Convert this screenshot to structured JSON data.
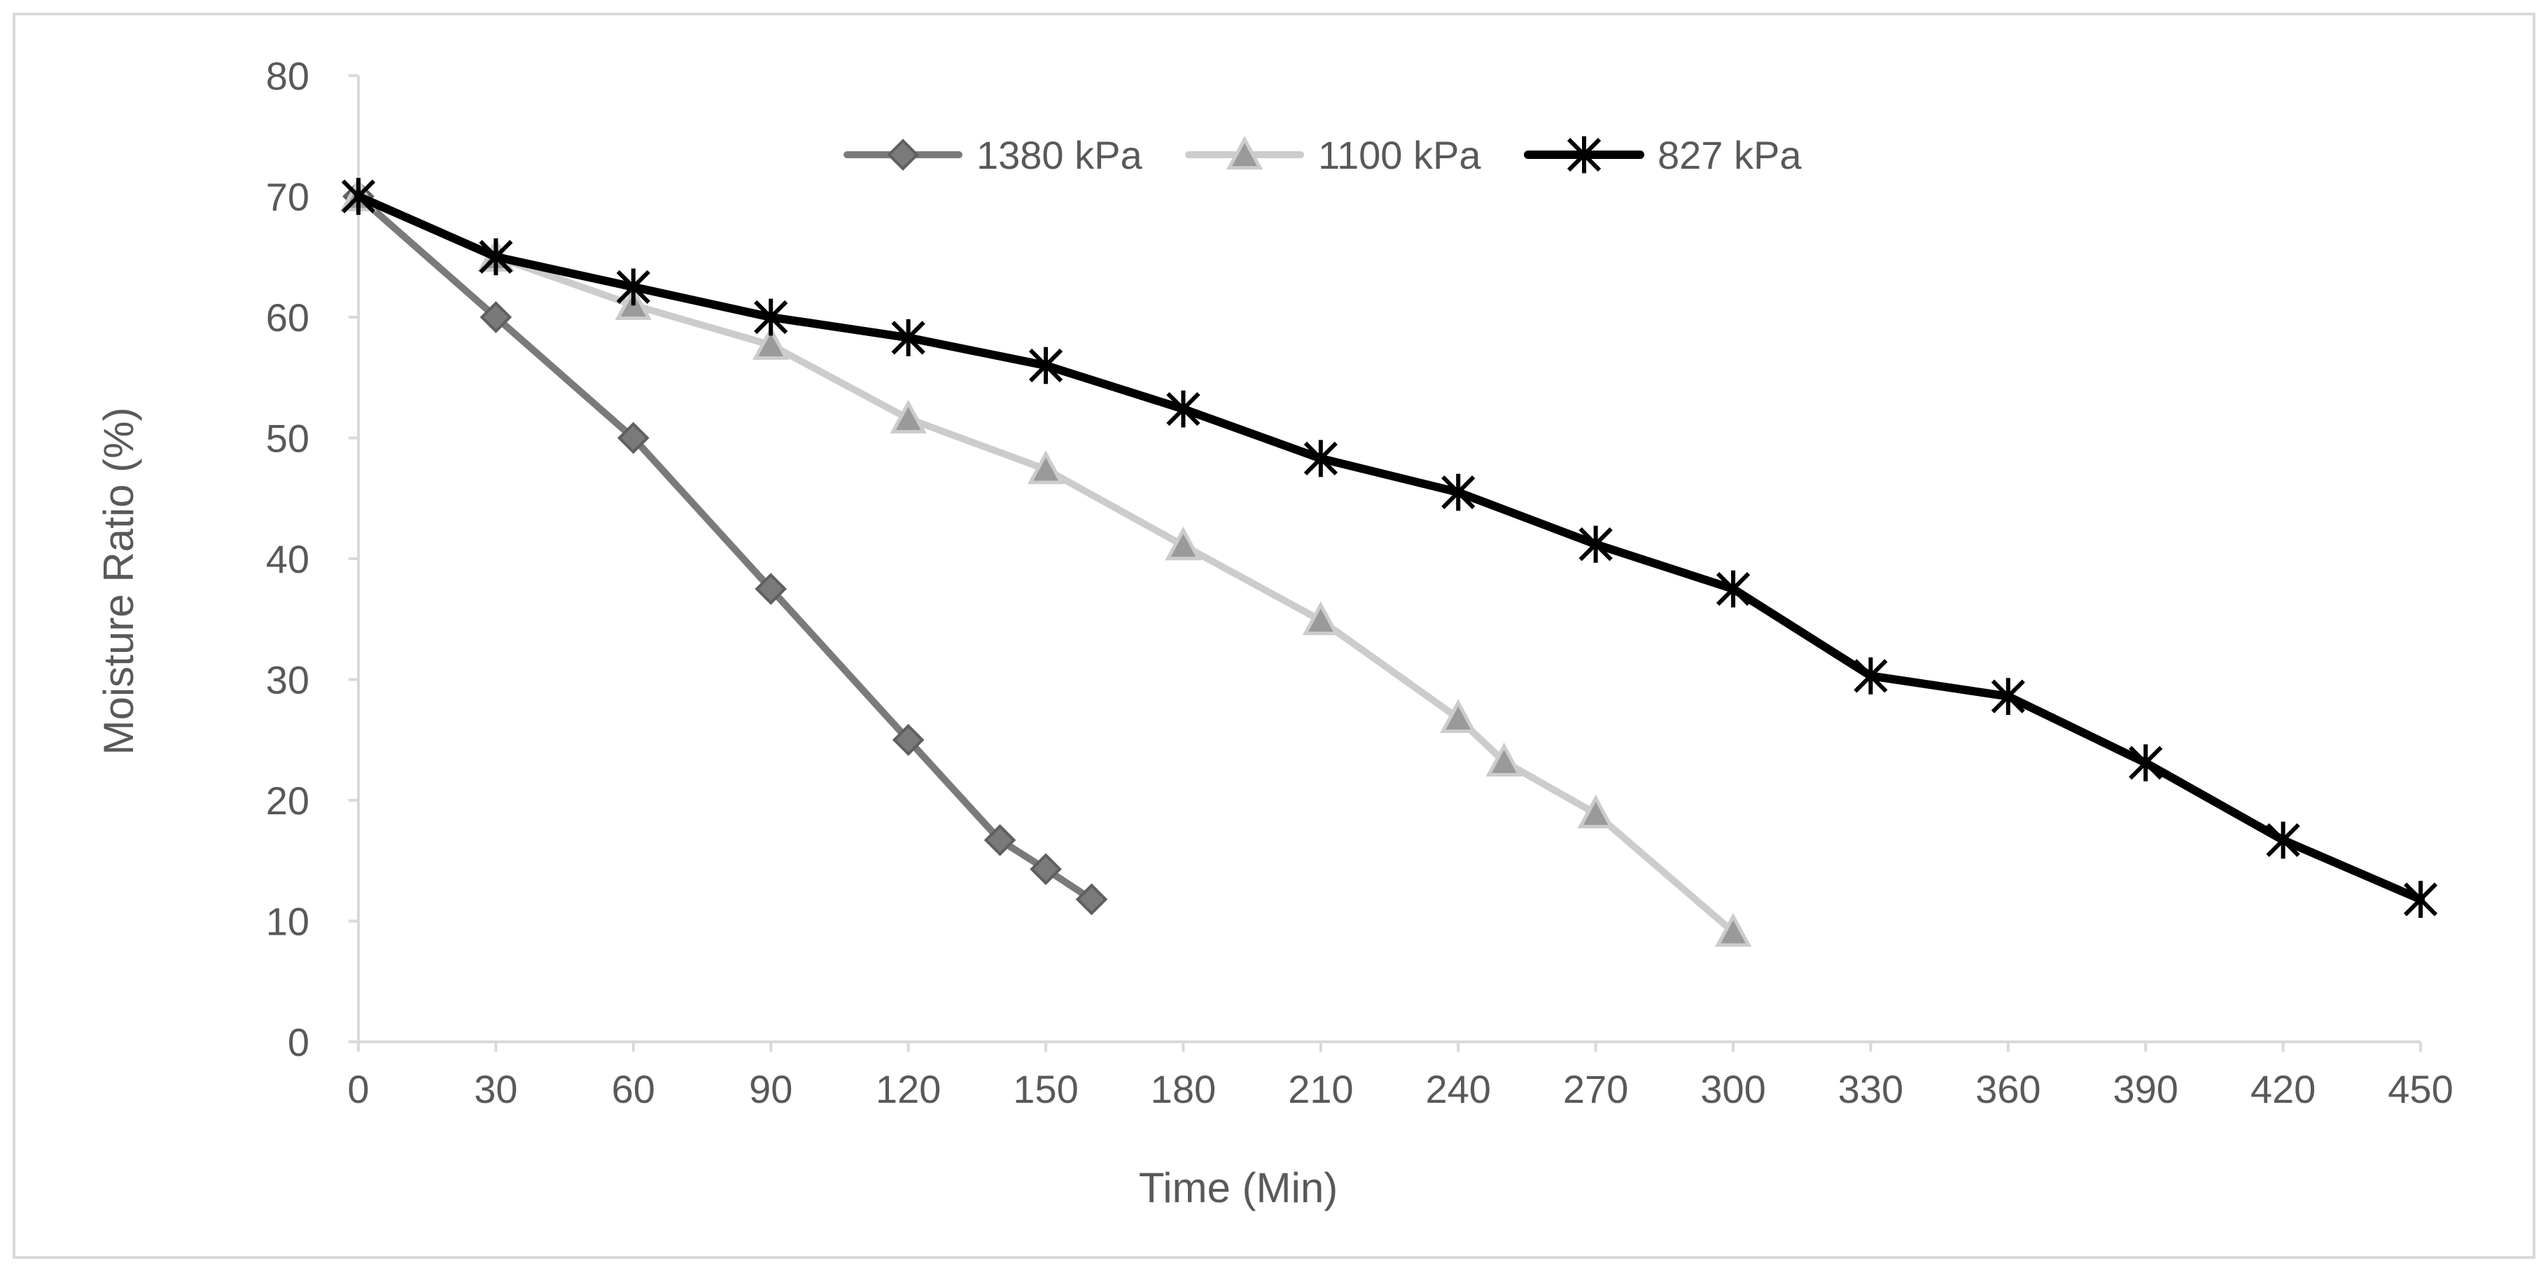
{
  "chart_data": {
    "type": "line",
    "title": "",
    "xlabel": "Time (Min)",
    "ylabel": "Moisture Ratio (%)",
    "xlim": [
      0,
      450
    ],
    "ylim": [
      0,
      80
    ],
    "x_ticks": [
      0,
      30,
      60,
      90,
      120,
      150,
      180,
      210,
      240,
      270,
      300,
      330,
      360,
      390,
      420,
      450
    ],
    "y_ticks": [
      0,
      10,
      20,
      30,
      40,
      50,
      60,
      70,
      80
    ],
    "grid": false,
    "legend_position": "top-center",
    "series": [
      {
        "name": "1380 kPa",
        "color": "#7a7a7a",
        "marker": "diamond",
        "x": [
          0,
          30,
          60,
          90,
          120,
          140,
          150,
          160
        ],
        "y": [
          70,
          60,
          50,
          37.5,
          25,
          16.7,
          14.3,
          11.8
        ]
      },
      {
        "name": "1100 kPa",
        "color": "#cccccc",
        "marker": "triangle",
        "x": [
          0,
          30,
          60,
          90,
          120,
          150,
          180,
          210,
          240,
          250,
          270,
          300
        ],
        "y": [
          70,
          65,
          61,
          57.7,
          51.6,
          47.4,
          41.1,
          34.9,
          26.8,
          23.2,
          18.9,
          9.1
        ]
      },
      {
        "name": "827 kPa",
        "color": "#000000",
        "marker": "star",
        "x": [
          0,
          30,
          60,
          90,
          120,
          150,
          180,
          210,
          240,
          270,
          300,
          330,
          360,
          390,
          420,
          450
        ],
        "y": [
          70,
          65,
          62.5,
          60,
          58.3,
          56,
          52.4,
          48.3,
          45.5,
          41.2,
          37.5,
          30.3,
          28.6,
          23.1,
          16.7,
          11.8
        ]
      }
    ]
  }
}
